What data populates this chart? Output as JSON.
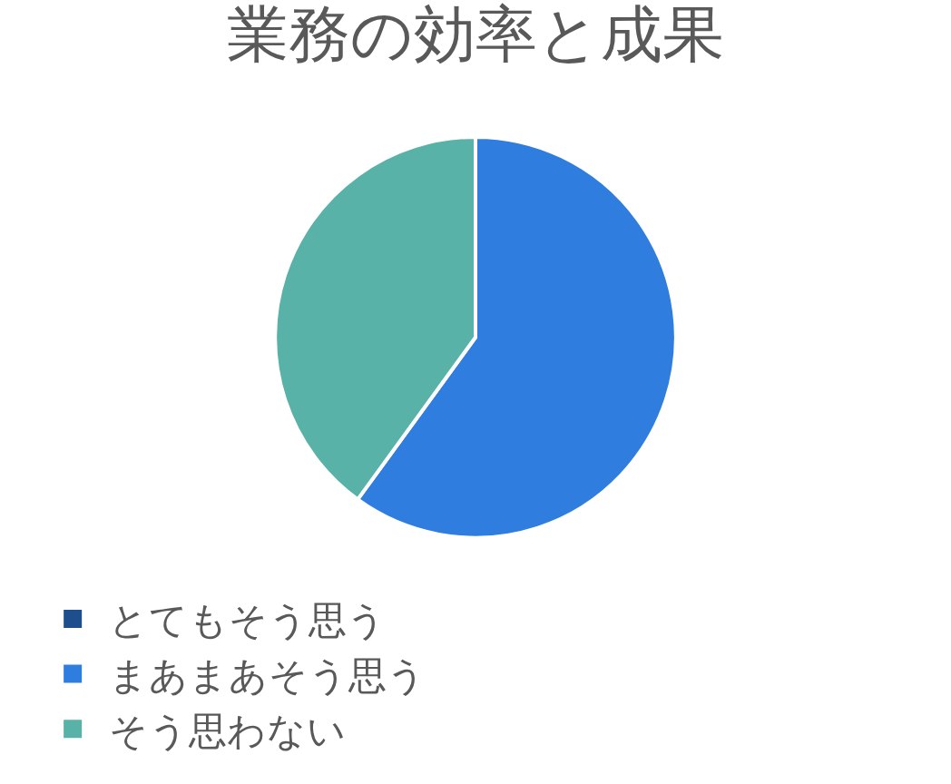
{
  "chart_data": {
    "type": "pie",
    "title": "業務の効率と成果",
    "categories": [
      "とてもそう思う",
      "まあまあそう思う",
      "そう思わない"
    ],
    "values": [
      0,
      60,
      40
    ],
    "colors": [
      "#1f4e8c",
      "#2f7ddf",
      "#58b2a8"
    ],
    "legend": "bottom"
  }
}
